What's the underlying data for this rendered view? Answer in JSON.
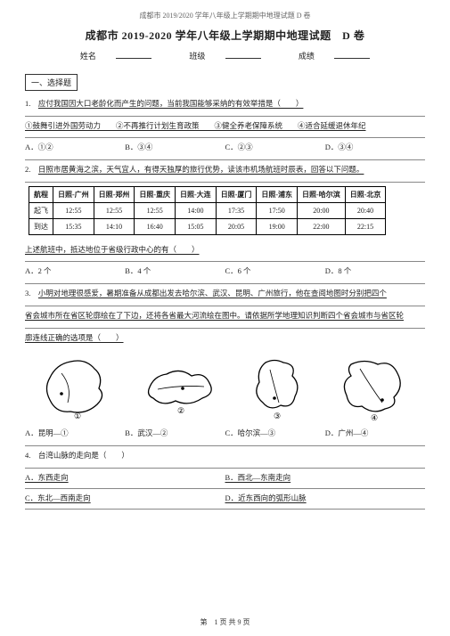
{
  "header": "成都市 2019/2020 学年八年级上学期期中地理试题 D 卷",
  "title": "成都市 2019-2020 学年八年级上学期期中地理试题　D 卷",
  "meta": {
    "name_label": "姓名",
    "class_label": "班级",
    "score_label": "成绩"
  },
  "section1": "一、选择题",
  "q1": {
    "stem": "应付我国因大口老龄化而产生的问题，当前我国能够采纳的有效举措是（　　）",
    "subopts": "①鼓舞引进外国劳动力　　②不再推行计划生育政策　　③健全养老保障系统　　④适合延缓退休年纪",
    "A": "A．①②",
    "B": "B．③④",
    "C": "C．②③",
    "D": "D．③④"
  },
  "q2": {
    "stem": "日照市居黄海之滨，天气宜人，有得天独厚的旅行优势，读该市机场航班时辰表，回答以下问题。",
    "table": {
      "cols": [
        "航程",
        "日照-广州",
        "日照-郑州",
        "日照-重庆",
        "日照-大连",
        "日照-厦门",
        "日照-浦东",
        "日照-哈尔滨",
        "日照-北京"
      ],
      "rows": [
        [
          "起飞",
          "12:55",
          "12:55",
          "12:55",
          "14:00",
          "17:35",
          "17:50",
          "20:00",
          "20:40"
        ],
        [
          "到达",
          "15:35",
          "14:10",
          "16:40",
          "15:05",
          "20:05",
          "19:00",
          "22:00",
          "22:15"
        ]
      ]
    },
    "sub": "上述航班中，抵达地位于省级行政中心的有（　　）",
    "A": "A．2 个",
    "B": "B．4 个",
    "C": "C．6 个",
    "D": "D．8 个"
  },
  "q3": {
    "stem1": "小明对地理很感爱，暑期准备从成都出发去哈尔滨、武汉、昆明、广州旅行，他在查阅地图时分别把四个",
    "stem2": "省会城市所在省区轮廓绘在了下边，还将各省最大河流绘在图中。请依据所学地理知识判断四个省会城市与省区轮",
    "stem3": "廓连线正确的选项是（　　）",
    "maps": [
      "①",
      "②",
      "③",
      "④"
    ],
    "A": "A．昆明—①",
    "B": "B．武汉—②",
    "C": "C．哈尔滨—③",
    "D": "D．广州—④"
  },
  "q4": {
    "stem": "台湾山脉的走向是（　　）",
    "A": "A．东西走向",
    "B": "B．西北—东南走向",
    "C": "C．东北—西南走向",
    "D": "D．近东西向的弧形山脉"
  },
  "footer": {
    "text": "第　1 页 共 9 页"
  }
}
